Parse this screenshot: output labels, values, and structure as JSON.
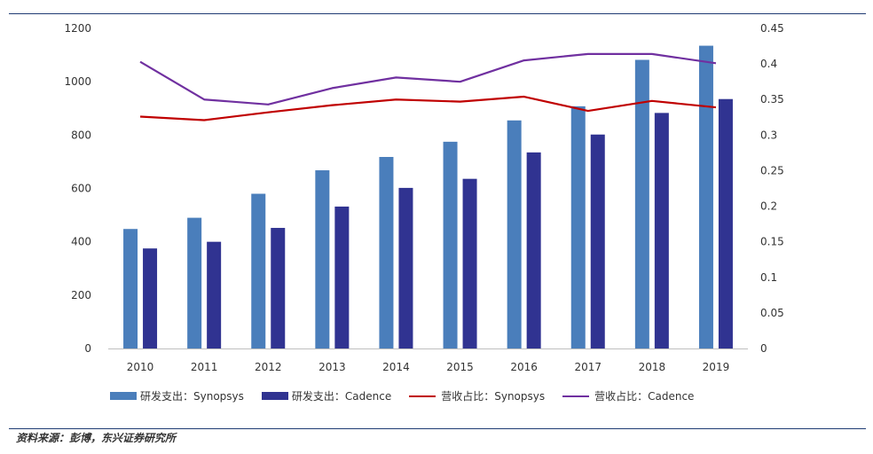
{
  "chart_data": {
    "type": "bar+line",
    "categories": [
      "2010",
      "2011",
      "2012",
      "2013",
      "2014",
      "2015",
      "2016",
      "2017",
      "2018",
      "2019"
    ],
    "bar_series": [
      {
        "name": "研发支出：Synopsys",
        "axis": "left",
        "color": "#4a7ebb",
        "values": [
          448,
          490,
          580,
          668,
          718,
          775,
          855,
          908,
          1082,
          1135
        ]
      },
      {
        "name": "研发支出：Cadence",
        "axis": "left",
        "color": "#303391",
        "values": [
          375,
          400,
          452,
          532,
          602,
          636,
          735,
          802,
          883,
          935
        ]
      }
    ],
    "line_series": [
      {
        "name": "营收占比：Synopsys",
        "axis": "right",
        "color": "#c00000",
        "values": [
          0.326,
          0.321,
          0.332,
          0.342,
          0.35,
          0.347,
          0.354,
          0.334,
          0.348,
          0.339
        ]
      },
      {
        "name": "营收占比：Cadence",
        "axis": "right",
        "color": "#7030a0",
        "values": [
          0.403,
          0.35,
          0.343,
          0.366,
          0.381,
          0.375,
          0.405,
          0.414,
          0.414,
          0.401
        ]
      }
    ],
    "ylim_left": [
      0,
      1200
    ],
    "yticks_left": [
      "0",
      "200",
      "400",
      "600",
      "800",
      "1000",
      "1200"
    ],
    "ylim_right": [
      0,
      0.45
    ],
    "yticks_right": [
      "0",
      "0.05",
      "0.1",
      "0.15",
      "0.2",
      "0.25",
      "0.3",
      "0.35",
      "0.4",
      "0.45"
    ],
    "legend_position": "bottom"
  },
  "legend": {
    "items": [
      {
        "label": "研发支出：Synopsys",
        "color": "#4a7ebb",
        "kind": "bar"
      },
      {
        "label": "研发支出：Cadence",
        "color": "#303391",
        "kind": "bar"
      },
      {
        "label": "营收占比：Synopsys",
        "color": "#c00000",
        "kind": "line"
      },
      {
        "label": "营收占比：Cadence",
        "color": "#7030a0",
        "kind": "line"
      }
    ]
  },
  "source_note": "资料来源：彭博，东兴证券研究所"
}
